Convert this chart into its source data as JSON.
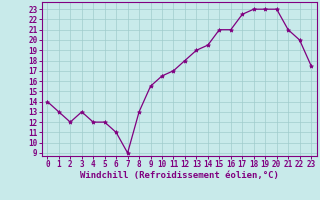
{
  "x": [
    0,
    1,
    2,
    3,
    4,
    5,
    6,
    7,
    8,
    9,
    10,
    11,
    12,
    13,
    14,
    15,
    16,
    17,
    18,
    19,
    20,
    21,
    22,
    23
  ],
  "y": [
    14,
    13,
    12,
    13,
    12,
    12,
    11,
    9,
    13,
    15.5,
    16.5,
    17,
    18,
    19,
    19.5,
    21,
    21,
    22.5,
    23,
    23,
    23,
    21,
    20,
    17.5
  ],
  "xlabel": "Windchill (Refroidissement éolien,°C)",
  "xlim": [
    -0.5,
    23.5
  ],
  "ylim": [
    8.7,
    23.7
  ],
  "yticks": [
    9,
    10,
    11,
    12,
    13,
    14,
    15,
    16,
    17,
    18,
    19,
    20,
    21,
    22,
    23
  ],
  "xticks": [
    0,
    1,
    2,
    3,
    4,
    5,
    6,
    7,
    8,
    9,
    10,
    11,
    12,
    13,
    14,
    15,
    16,
    17,
    18,
    19,
    20,
    21,
    22,
    23
  ],
  "line_color": "#800080",
  "marker": "*",
  "bg_color": "#c8eaea",
  "grid_color": "#a0cccc",
  "tick_label_fontsize": 5.5,
  "xlabel_fontsize": 6.5
}
